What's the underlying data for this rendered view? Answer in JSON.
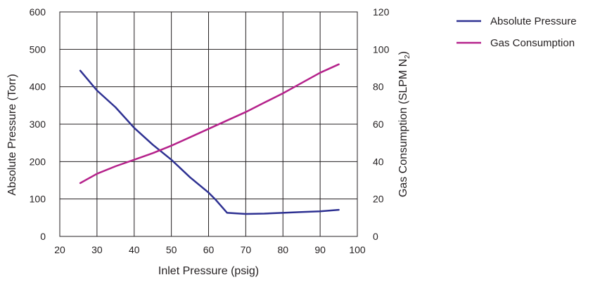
{
  "chart_data": {
    "type": "line",
    "xlabel": "Inlet Pressure (psig)",
    "ylabel": "Absolute Pressure (Torr)",
    "y2label": "Gas Consumption (SLPM N",
    "y2label_subscript": "2",
    "y2label_suffix": ")",
    "xlim": [
      20,
      100
    ],
    "ylim": [
      0,
      600
    ],
    "y2lim": [
      0,
      120
    ],
    "x_ticks": [
      "20",
      "30",
      "40",
      "50",
      "60",
      "70",
      "80",
      "90",
      "100"
    ],
    "y_ticks": [
      "0",
      "100",
      "200",
      "300",
      "400",
      "500",
      "600"
    ],
    "y2_ticks": [
      "0",
      "20",
      "40",
      "60",
      "80",
      "100",
      "120"
    ],
    "grid": true,
    "legend_position": "right",
    "series": [
      {
        "name": "Absolute Pressure",
        "axis": "left",
        "color": "#2e3192",
        "x": [
          25.5,
          30,
          35,
          40,
          45,
          50,
          55,
          60,
          62,
          65,
          70,
          75,
          80,
          85,
          90,
          95
        ],
        "y": [
          443,
          390,
          345,
          290,
          245,
          205,
          158,
          117,
          97,
          63,
          60,
          61,
          63,
          65,
          67,
          71
        ]
      },
      {
        "name": "Gas Consumption",
        "axis": "right",
        "color": "#b5228b",
        "x": [
          25.5,
          30,
          35,
          40,
          45,
          50,
          55,
          60,
          65,
          70,
          75,
          80,
          85,
          90,
          95
        ],
        "y": [
          28.5,
          33.5,
          37.5,
          41,
          44.5,
          48.5,
          53,
          57.5,
          62,
          66.5,
          71.5,
          76.5,
          82,
          87.5,
          92
        ]
      }
    ]
  }
}
